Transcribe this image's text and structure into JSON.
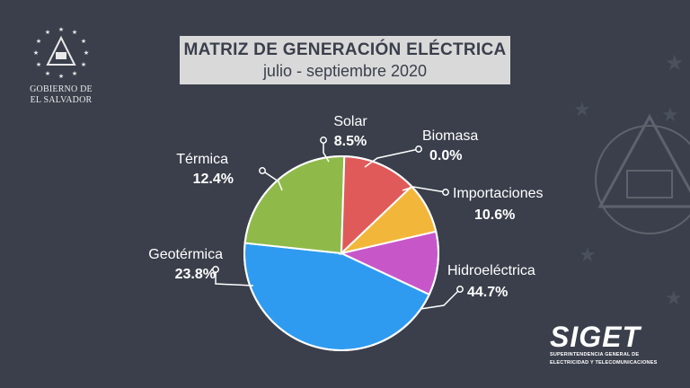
{
  "header": {
    "title": "MATRIZ DE GENERACIÓN ELÉCTRICA",
    "subtitle": "julio - septiembre 2020"
  },
  "gov_logo": {
    "line1": "GOBIERNO DE",
    "line2": "EL SALVADOR",
    "icon": "coat-of-arms-icon"
  },
  "siget_logo": {
    "brand": "SIGET",
    "line1": "SUPERINTENDENCIA GENERAL DE",
    "line2": "ELECTRICIDAD Y TELECOMUNICACIONES"
  },
  "colors": {
    "background": "#3a3f4b",
    "title_box": "#d9d9d9",
    "label": "#ffffff",
    "slice_border": "#ffffff"
  },
  "chart_data": {
    "type": "pie",
    "title": "MATRIZ DE GENERACIÓN ELÉCTRICA",
    "subtitle": "julio - septiembre 2020",
    "slices": [
      {
        "name": "Biomasa",
        "value": 0.0,
        "label": "0.0%",
        "color": "#f0c419"
      },
      {
        "name": "Importaciones",
        "value": 10.6,
        "label": "10.6%",
        "color": "#c757c9"
      },
      {
        "name": "Hidroeléctrica",
        "value": 44.7,
        "label": "44.7%",
        "color": "#2e9bf0"
      },
      {
        "name": "Geotérmica",
        "value": 23.8,
        "label": "23.8%",
        "color": "#8fba4a"
      },
      {
        "name": "Térmica",
        "value": 12.4,
        "label": "12.4%",
        "color": "#e05a5a"
      },
      {
        "name": "Solar",
        "value": 8.5,
        "label": "8.5%",
        "color": "#f2b73a"
      }
    ]
  }
}
